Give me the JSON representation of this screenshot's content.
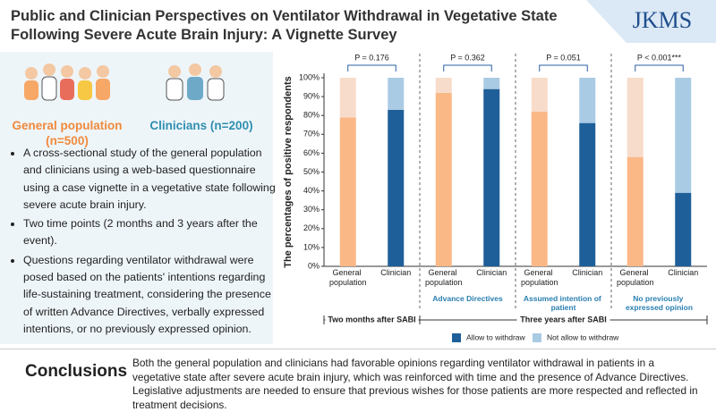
{
  "header": {
    "title": "Public and Clinician Perspectives on Ventilator Withdrawal in Vegetative State Following Severe Acute Brain Injury: A Vignette Survey",
    "logo": "JKMS"
  },
  "panel": {
    "groups": [
      "General population (n=500)",
      "Clinicians (n=200)"
    ],
    "bullets": [
      "A cross-sectional study of the general population and clinicians using a web-based questionnaire using a case vignette in a vegetative state following severe acute brain injury.",
      "Two time points (2 months and 3 years after the event).",
      "Questions regarding ventilator withdrawal were posed based on the patients' intentions regarding life-sustaining treatment, considering the presence of written Advance Directives, verbally expressed intentions, or no previously expressed opinion."
    ]
  },
  "chart_data": {
    "type": "stacked_bar",
    "y_label": "The percentages of positive respondents",
    "categories": [
      "General population",
      "Clinician",
      "General population",
      "Clinician",
      "General population",
      "Clinician",
      "General population",
      "Clinician"
    ],
    "group_labels": [
      null,
      "Advance Directives",
      "Assumed intention of patient",
      "No previously expressed opinion"
    ],
    "p_values": [
      "P = 0.176",
      "P = 0.362",
      "P = 0.051",
      "P < 0.001***"
    ],
    "periods": [
      "Two months after SABI",
      "Three years after SABI"
    ],
    "series": [
      {
        "name": "Allow to withdraw",
        "color": "#1f5f99",
        "colors": [
          "#fbb887",
          "#1f5f99",
          "#fbb887",
          "#1f5f99",
          "#fbb887",
          "#1f5f99",
          "#fbb887",
          "#1f5f99"
        ],
        "values": [
          79,
          83,
          92,
          94,
          82,
          76,
          58,
          39
        ]
      },
      {
        "name": "Not allow to withdraw",
        "color": "#aacbe4",
        "colors": [
          "#f8dccb",
          "#aacbe4",
          "#f8dccb",
          "#aacbe4",
          "#f8dccb",
          "#aacbe4",
          "#f8dccb",
          "#aacbe4"
        ],
        "values": [
          21,
          17,
          8,
          6,
          18,
          24,
          42,
          61
        ]
      }
    ],
    "ylim": [
      0,
      100
    ],
    "yticks": [
      {
        "value": 0,
        "label": "0%"
      },
      {
        "value": 10,
        "label": "10%"
      },
      {
        "value": 20,
        "label": "20%"
      },
      {
        "value": 30,
        "label": "30%"
      },
      {
        "value": 40,
        "label": "40%"
      },
      {
        "value": 50,
        "label": "50%"
      },
      {
        "value": 60,
        "label": "60%"
      },
      {
        "value": 70,
        "label": "70%"
      },
      {
        "value": 80,
        "label": "80%"
      },
      {
        "value": 90,
        "label": "90%"
      },
      {
        "value": 100,
        "label": "100%"
      }
    ]
  },
  "conclusions": {
    "heading": "Conclusions",
    "text": "Both the general population and clinicians had favorable opinions regarding ventilator withdrawal in patients in a vegetative state after severe acute brain injury, which was reinforced with time and the presence of Advance Directives. Legislative adjustments are needed to ensure that previous wishes for those patients are more respected and reflected in treatment decisions."
  }
}
